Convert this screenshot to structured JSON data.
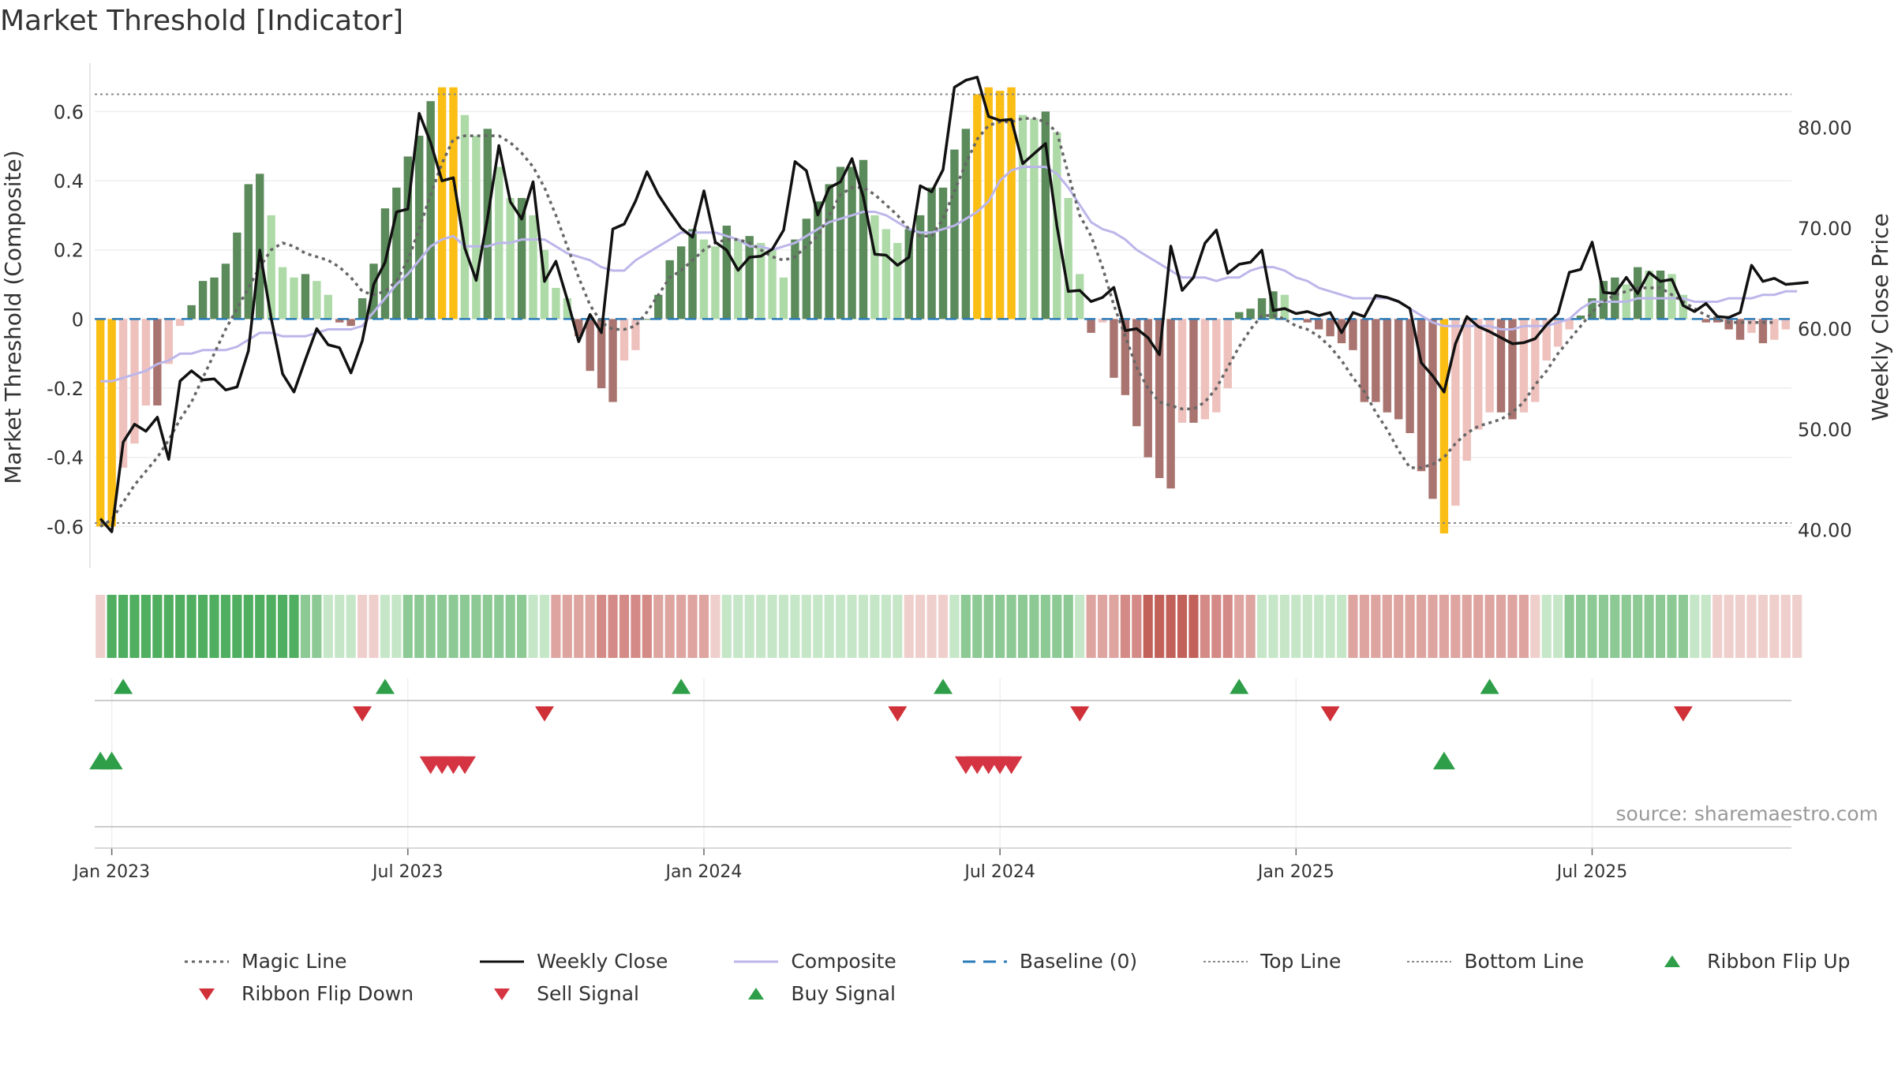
{
  "page": {
    "title": "Market Threshold [Indicator]"
  },
  "chart_data": {
    "type": "bar",
    "title": "Market Threshold [Indicator]",
    "ylabel_left": "Market Threshold (Composite)",
    "ylabel_right": "Weekly Close Price",
    "ylim_left": [
      -0.72,
      0.74
    ],
    "ylim_right": [
      36.2,
      86.4
    ],
    "left_ticks": [
      "0.6",
      "0.4",
      "0.2",
      "0",
      "-0.2",
      "-0.4",
      "-0.6"
    ],
    "left_tick_values": [
      0.6,
      0.4,
      0.2,
      0,
      -0.2,
      -0.4,
      -0.6
    ],
    "right_ticks": [
      "80.00",
      "70.00",
      "60.00",
      "50.00",
      "40.00"
    ],
    "right_tick_values": [
      80,
      70,
      60,
      50,
      40
    ],
    "x_ticks": [
      "Jan 2023",
      "Jul 2023",
      "Jan 2024",
      "Jul 2024",
      "Jan 2025",
      "Jul 2025"
    ],
    "x_tick_weeks": [
      1,
      27,
      53,
      79,
      105,
      131
    ],
    "top_line": 0.65,
    "bottom_line": -0.59,
    "baseline": 0,
    "source": "source: sharemaestro.com",
    "colors": {
      "strong_up": "#5b8a5b",
      "weak_up": "#aedaa8",
      "strong_down": "#a97470",
      "weak_down": "#eec1bd",
      "threshold": "#fbbe14",
      "close": "#111111",
      "composite": "#bcb6ea",
      "magic": "#666666",
      "baseline": "#2b7bb9",
      "buy": "#2e9e48",
      "sell": "#d53542",
      "flip_down": "#d03038"
    },
    "series": [
      {
        "name": "Composite Bars",
        "values": [
          -0.6,
          -0.6,
          -0.43,
          -0.36,
          -0.25,
          -0.25,
          -0.13,
          -0.02,
          0.04,
          0.11,
          0.12,
          0.16,
          0.25,
          0.39,
          0.42,
          0.3,
          0.15,
          0.12,
          0.13,
          0.11,
          0.07,
          -0.01,
          -0.02,
          0.06,
          0.16,
          0.32,
          0.38,
          0.47,
          0.53,
          0.63,
          0.67,
          0.67,
          0.59,
          0.53,
          0.55,
          0.44,
          0.35,
          0.35,
          0.3,
          0.2,
          0.09,
          0.06,
          -0.05,
          -0.15,
          -0.2,
          -0.24,
          -0.12,
          -0.09,
          0.0,
          0.07,
          0.17,
          0.21,
          0.26,
          0.23,
          0.21,
          0.27,
          0.23,
          0.24,
          0.22,
          0.2,
          0.12,
          0.23,
          0.29,
          0.34,
          0.39,
          0.44,
          0.44,
          0.46,
          0.3,
          0.26,
          0.22,
          0.26,
          0.3,
          0.38,
          0.38,
          0.49,
          0.55,
          0.65,
          0.67,
          0.66,
          0.67,
          0.59,
          0.58,
          0.6,
          0.54,
          0.35,
          0.13,
          -0.04,
          -0.01,
          -0.17,
          -0.22,
          -0.31,
          -0.4,
          -0.46,
          -0.49,
          -0.3,
          -0.3,
          -0.29,
          -0.27,
          -0.2,
          0.02,
          0.03,
          0.06,
          0.08,
          0.07,
          -0.0,
          -0.01,
          -0.03,
          -0.05,
          -0.07,
          -0.09,
          -0.24,
          -0.24,
          -0.27,
          -0.29,
          -0.33,
          -0.44,
          -0.52,
          -0.62,
          -0.54,
          -0.41,
          -0.32,
          -0.27,
          -0.27,
          -0.29,
          -0.27,
          -0.24,
          -0.12,
          -0.08,
          -0.03,
          0.01,
          0.06,
          0.11,
          0.12,
          0.1,
          0.15,
          0.14,
          0.14,
          0.13,
          0.07,
          0.0,
          -0.01,
          -0.01,
          -0.03,
          -0.06,
          -0.04,
          -0.07,
          -0.06,
          -0.03
        ]
      },
      {
        "name": "Weekly Close",
        "values": [
          41.1,
          39.8,
          48.7,
          50.5,
          49.8,
          51.2,
          47.0,
          54.8,
          55.8,
          54.9,
          55.0,
          53.9,
          54.2,
          57.8,
          67.8,
          61.0,
          55.5,
          53.7,
          56.9,
          60.0,
          58.4,
          58.1,
          55.6,
          58.8,
          64.4,
          66.6,
          71.6,
          71.9,
          81.4,
          78.5,
          74.7,
          75.0,
          68.0,
          64.8,
          71.0,
          78.2,
          72.6,
          70.9,
          74.6,
          64.7,
          66.7,
          62.9,
          58.7,
          61.4,
          59.6,
          69.9,
          70.4,
          72.7,
          75.6,
          73.3,
          71.6,
          70.0,
          69.1,
          73.7,
          68.6,
          67.8,
          65.8,
          67.1,
          67.2,
          67.9,
          69.8,
          76.6,
          75.7,
          71.3,
          74.0,
          74.6,
          76.9,
          73.1,
          67.4,
          67.3,
          66.3,
          67.1,
          74.2,
          73.6,
          75.8,
          84.0,
          84.7,
          85.0,
          81.1,
          80.7,
          80.8,
          76.4,
          77.4,
          78.4,
          70.2,
          63.7,
          63.8,
          62.7,
          63.1,
          64.1,
          59.8,
          60.0,
          59.1,
          57.4,
          68.2,
          63.8,
          65.1,
          68.5,
          69.8,
          65.5,
          66.4,
          66.6,
          67.8,
          61.8,
          62.0,
          61.5,
          61.7,
          61.3,
          61.6,
          59.6,
          61.6,
          61.2,
          63.3,
          63.1,
          62.7,
          62.0,
          56.6,
          55.3,
          53.7,
          58.5,
          61.2,
          60.2,
          59.7,
          59.1,
          58.5,
          58.6,
          59.0,
          60.4,
          61.5,
          65.6,
          65.9,
          68.6,
          63.6,
          63.5,
          65.1,
          63.5,
          65.6,
          64.7,
          64.9,
          62.3,
          61.7,
          62.5,
          61.2,
          61.1,
          61.6,
          66.3,
          64.7,
          65.0,
          64.4,
          64.5,
          64.6
        ]
      },
      {
        "name": "Composite",
        "values": [
          -0.18,
          -0.18,
          -0.17,
          -0.16,
          -0.15,
          -0.13,
          -0.12,
          -0.1,
          -0.1,
          -0.09,
          -0.09,
          -0.09,
          -0.08,
          -0.06,
          -0.04,
          -0.04,
          -0.05,
          -0.05,
          -0.05,
          -0.04,
          -0.03,
          -0.03,
          -0.03,
          -0.02,
          0.02,
          0.06,
          0.1,
          0.13,
          0.17,
          0.21,
          0.23,
          0.24,
          0.21,
          0.21,
          0.21,
          0.22,
          0.22,
          0.23,
          0.23,
          0.23,
          0.21,
          0.19,
          0.18,
          0.17,
          0.15,
          0.14,
          0.14,
          0.17,
          0.19,
          0.21,
          0.23,
          0.25,
          0.25,
          0.25,
          0.25,
          0.24,
          0.23,
          0.21,
          0.21,
          0.2,
          0.21,
          0.22,
          0.24,
          0.26,
          0.28,
          0.29,
          0.3,
          0.31,
          0.31,
          0.3,
          0.28,
          0.26,
          0.25,
          0.25,
          0.26,
          0.27,
          0.29,
          0.31,
          0.34,
          0.4,
          0.43,
          0.44,
          0.44,
          0.44,
          0.42,
          0.38,
          0.33,
          0.28,
          0.26,
          0.25,
          0.23,
          0.2,
          0.18,
          0.16,
          0.14,
          0.12,
          0.12,
          0.12,
          0.11,
          0.12,
          0.12,
          0.14,
          0.15,
          0.15,
          0.14,
          0.12,
          0.11,
          0.09,
          0.08,
          0.07,
          0.06,
          0.06,
          0.06,
          0.06,
          0.05,
          0.03,
          0.01,
          -0.01,
          -0.02,
          -0.02,
          -0.02,
          -0.02,
          -0.02,
          -0.03,
          -0.03,
          -0.02,
          -0.02,
          -0.02,
          -0.01,
          0.0,
          0.03,
          0.05,
          0.05,
          0.05,
          0.05,
          0.06,
          0.06,
          0.06,
          0.06,
          0.06,
          0.05,
          0.05,
          0.05,
          0.06,
          0.06,
          0.06,
          0.07,
          0.07,
          0.08,
          0.08
        ]
      },
      {
        "name": "Magic Line",
        "values": [
          -0.6,
          -0.58,
          -0.53,
          -0.48,
          -0.44,
          -0.4,
          -0.35,
          -0.29,
          -0.24,
          -0.17,
          -0.1,
          -0.03,
          0.03,
          0.09,
          0.15,
          0.2,
          0.22,
          0.21,
          0.19,
          0.18,
          0.17,
          0.15,
          0.12,
          0.08,
          0.07,
          0.08,
          0.11,
          0.17,
          0.26,
          0.36,
          0.45,
          0.52,
          0.53,
          0.53,
          0.53,
          0.53,
          0.51,
          0.48,
          0.44,
          0.38,
          0.3,
          0.21,
          0.12,
          0.04,
          -0.01,
          -0.03,
          -0.03,
          -0.02,
          0.02,
          0.07,
          0.12,
          0.14,
          0.17,
          0.2,
          0.22,
          0.23,
          0.23,
          0.22,
          0.2,
          0.18,
          0.17,
          0.18,
          0.21,
          0.24,
          0.3,
          0.36,
          0.38,
          0.38,
          0.36,
          0.33,
          0.3,
          0.26,
          0.24,
          0.24,
          0.29,
          0.37,
          0.45,
          0.52,
          0.56,
          0.57,
          0.57,
          0.58,
          0.58,
          0.57,
          0.54,
          0.42,
          0.3,
          0.24,
          0.15,
          0.04,
          -0.05,
          -0.14,
          -0.2,
          -0.24,
          -0.25,
          -0.26,
          -0.26,
          -0.24,
          -0.2,
          -0.14,
          -0.08,
          -0.03,
          0.01,
          0.01,
          0.0,
          -0.02,
          -0.03,
          -0.05,
          -0.08,
          -0.12,
          -0.17,
          -0.21,
          -0.27,
          -0.32,
          -0.38,
          -0.43,
          -0.43,
          -0.42,
          -0.4,
          -0.36,
          -0.33,
          -0.31,
          -0.3,
          -0.29,
          -0.27,
          -0.24,
          -0.19,
          -0.15,
          -0.1,
          -0.06,
          -0.02,
          0.02,
          0.05,
          0.07,
          0.08,
          0.09,
          0.09,
          0.09,
          0.07,
          0.05,
          0.03,
          0.01,
          -0.0,
          -0.01,
          -0.01,
          -0.01,
          -0.01,
          -0.01
        ]
      }
    ],
    "ribbon_levels": [
      -1,
      3,
      3,
      3,
      3,
      3,
      3,
      3,
      3,
      3,
      3,
      3,
      3,
      3,
      3,
      3,
      3,
      3,
      2,
      2,
      1,
      1,
      1,
      -1,
      -1,
      1,
      1,
      2,
      2,
      2,
      2,
      2,
      2,
      2,
      2,
      2,
      2,
      2,
      1,
      1,
      -2,
      -2,
      -2,
      -2,
      -3,
      -3,
      -3,
      -3,
      -3,
      -2,
      -2,
      -2,
      -2,
      -2,
      -1,
      1,
      1,
      1,
      1,
      1,
      1,
      1,
      1,
      1,
      1,
      1,
      1,
      1,
      1,
      1,
      1,
      -1,
      -1,
      -1,
      -1,
      1,
      2,
      2,
      2,
      2,
      2,
      2,
      2,
      2,
      2,
      2,
      1,
      -2,
      -2,
      -2,
      -3,
      -3,
      -4,
      -4,
      -4,
      -4,
      -4,
      -3,
      -3,
      -3,
      -2,
      -2,
      1,
      1,
      1,
      1,
      1,
      1,
      1,
      1,
      -2,
      -2,
      -2,
      -2,
      -2,
      -2,
      -2,
      -2,
      -2,
      -2,
      -2,
      -2,
      -2,
      -2,
      -2,
      -2,
      -1,
      1,
      1,
      2,
      2,
      2,
      2,
      2,
      2,
      2,
      2,
      2,
      2,
      2,
      1,
      1,
      -1,
      -1,
      -1,
      -1,
      -1,
      -1,
      -1,
      -1
    ],
    "flip_up_weeks": [
      2,
      25,
      51,
      74,
      100,
      122
    ],
    "flip_down_weeks": [
      23,
      39,
      70,
      86,
      108,
      139
    ],
    "buy_signal_weeks": [
      0,
      1,
      118
    ],
    "sell_signal_weeks": [
      29,
      30,
      31,
      32,
      76,
      77,
      78,
      79,
      80
    ]
  },
  "legend": [
    {
      "label": "Magic Line",
      "symbol": "dotted-line-icon",
      "color": "#666666"
    },
    {
      "label": "Weekly Close",
      "symbol": "solid-line-icon",
      "color": "#111111"
    },
    {
      "label": "Composite",
      "symbol": "solid-line-icon",
      "color": "#bcb6ea"
    },
    {
      "label": "Baseline (0)",
      "symbol": "dashed-line-icon",
      "color": "#2b7bb9"
    },
    {
      "label": "Top Line",
      "symbol": "fine-dotted-line-icon",
      "color": "#888888"
    },
    {
      "label": "Bottom Line",
      "symbol": "fine-dotted-line-icon",
      "color": "#888888"
    },
    {
      "label": "Ribbon Flip Up",
      "symbol": "up-triangle-icon",
      "color": "#2e9e48"
    },
    {
      "label": "Ribbon Flip Down",
      "symbol": "down-triangle-icon",
      "color": "#d03038"
    },
    {
      "label": "Sell Signal",
      "symbol": "down-triangle-icon",
      "color": "#d53542"
    },
    {
      "label": "Buy Signal",
      "symbol": "up-triangle-icon",
      "color": "#2e9e48"
    }
  ]
}
